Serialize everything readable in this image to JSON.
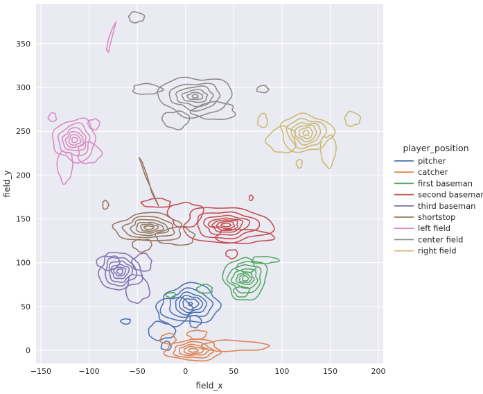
{
  "chart_data": {
    "type": "kde-contour",
    "title": "",
    "xlabel": "field_x",
    "ylabel": "field_y",
    "xlim": [
      -155,
      205
    ],
    "ylim": [
      -15,
      395
    ],
    "xticks": [
      -150,
      -100,
      -50,
      0,
      50,
      100,
      150,
      200
    ],
    "yticks": [
      0,
      50,
      100,
      150,
      200,
      250,
      300,
      350
    ],
    "grid": true,
    "background": "#EAEAF2",
    "legend": {
      "title": "player_position",
      "placement": "right"
    },
    "series": [
      {
        "name": "pitcher",
        "color": "#4C72B0",
        "center": [
          5,
          53
        ],
        "levels": [
          {
            "r": [
              2,
              2
            ],
            "extra": []
          },
          {
            "r": [
              8,
              6
            ]
          },
          {
            "r": [
              12,
              9
            ]
          },
          {
            "r": [
              16,
              12
            ]
          },
          {
            "r": [
              22,
              16
            ]
          },
          {
            "r": [
              30,
              22
            ]
          }
        ],
        "blobs": [
          {
            "cx": -12,
            "cy": 45,
            "rx": 18,
            "ry": 16
          },
          {
            "cx": -25,
            "cy": 22,
            "rx": 14,
            "ry": 10
          },
          {
            "cx": -20,
            "cy": 5,
            "rx": 5,
            "ry": 5
          },
          {
            "cx": -62,
            "cy": 33,
            "rx": 5,
            "ry": 3
          },
          {
            "cx": 10,
            "cy": 33,
            "rx": 6,
            "ry": 7
          }
        ]
      },
      {
        "name": "catcher",
        "color": "#DD8452",
        "center": [
          8,
          0
        ],
        "levels": [
          {
            "r": [
              5,
              2
            ]
          },
          {
            "r": [
              10,
              4
            ]
          },
          {
            "r": [
              15,
              6
            ]
          },
          {
            "r": [
              20,
              9
            ]
          },
          {
            "r": [
              28,
              12
            ]
          }
        ],
        "blobs": [
          {
            "cx": 50,
            "cy": 5,
            "rx": 35,
            "ry": 6
          },
          {
            "cx": -18,
            "cy": 13,
            "rx": 8,
            "ry": 6
          },
          {
            "cx": 12,
            "cy": 18,
            "rx": 10,
            "ry": 5
          }
        ]
      },
      {
        "name": "first baseman",
        "color": "#55A868",
        "center": [
          62,
          82
        ],
        "levels": [
          {
            "r": [
              3,
              3
            ]
          },
          {
            "r": [
              6,
              5
            ]
          },
          {
            "r": [
              9,
              7
            ]
          },
          {
            "r": [
              13,
              11
            ]
          },
          {
            "r": [
              17,
              16
            ]
          },
          {
            "r": [
              22,
              24
            ]
          }
        ],
        "blobs": [
          {
            "cx": 63,
            "cy": 95,
            "rx": 10,
            "ry": 6
          },
          {
            "cx": 58,
            "cy": 67,
            "rx": 8,
            "ry": 6
          },
          {
            "cx": 82,
            "cy": 103,
            "rx": 14,
            "ry": 4
          },
          {
            "cx": 20,
            "cy": 70,
            "rx": 8,
            "ry": 5
          },
          {
            "cx": -15,
            "cy": 63,
            "rx": 5,
            "ry": 3
          }
        ]
      },
      {
        "name": "second baseman",
        "color": "#C44E52",
        "center": [
          42,
          143
        ],
        "levels": [
          {
            "r": [
              5,
              2
            ]
          },
          {
            "r": [
              9,
              4
            ]
          },
          {
            "r": [
              13,
              6
            ]
          },
          {
            "r": [
              17,
              8
            ]
          },
          {
            "r": [
              23,
              11
            ]
          },
          {
            "r": [
              32,
              15
            ]
          },
          {
            "r": [
              46,
              20
            ]
          }
        ],
        "blobs": [
          {
            "cx": 0,
            "cy": 155,
            "rx": 18,
            "ry": 14
          },
          {
            "cx": 60,
            "cy": 130,
            "rx": 30,
            "ry": 8
          },
          {
            "cx": -30,
            "cy": 168,
            "rx": 15,
            "ry": 5
          },
          {
            "cx": 48,
            "cy": 110,
            "rx": 6,
            "ry": 5
          },
          {
            "cx": 68,
            "cy": 174,
            "rx": 2,
            "ry": 3
          }
        ]
      },
      {
        "name": "third baseman",
        "color": "#8172B3",
        "center": [
          -68,
          90
        ],
        "levels": [
          {
            "r": [
              3,
              3
            ]
          },
          {
            "r": [
              6,
              5
            ]
          },
          {
            "r": [
              9,
              8
            ]
          },
          {
            "r": [
              12,
              12
            ]
          },
          {
            "r": [
              16,
              16
            ]
          },
          {
            "r": [
              22,
              21
            ]
          }
        ],
        "blobs": [
          {
            "cx": -50,
            "cy": 70,
            "rx": 12,
            "ry": 16
          },
          {
            "cx": -45,
            "cy": 100,
            "rx": 10,
            "ry": 10
          },
          {
            "cx": -80,
            "cy": 100,
            "rx": 12,
            "ry": 8
          }
        ]
      },
      {
        "name": "shortstop",
        "color": "#937860",
        "center": [
          -38,
          140
        ],
        "levels": [
          {
            "r": [
              5,
              2
            ]
          },
          {
            "r": [
              9,
              4
            ]
          },
          {
            "r": [
              14,
              6
            ]
          },
          {
            "r": [
              19,
              9
            ]
          },
          {
            "r": [
              26,
              12
            ]
          },
          {
            "r": [
              35,
              16
            ]
          }
        ],
        "blobs": [
          {
            "cx": -10,
            "cy": 130,
            "rx": 20,
            "ry": 10
          },
          {
            "cx": -45,
            "cy": 120,
            "rx": 10,
            "ry": 7
          },
          {
            "cx": -83,
            "cy": 166,
            "rx": 3,
            "ry": 5
          }
        ],
        "streaks": [
          [
            [
              -45,
              215
            ],
            [
              -40,
              200
            ],
            [
              -35,
              180
            ],
            [
              -28,
              165
            ],
            [
              -34,
              180
            ],
            [
              -42,
              200
            ],
            [
              -48,
              220
            ],
            [
              -45,
              215
            ]
          ]
        ]
      },
      {
        "name": "left field",
        "color": "#DA8BC3",
        "center": [
          -115,
          240
        ],
        "levels": [
          {
            "r": [
              3,
              3
            ]
          },
          {
            "r": [
              6,
              6
            ]
          },
          {
            "r": [
              9,
              9
            ]
          },
          {
            "r": [
              12,
              13
            ]
          },
          {
            "r": [
              16,
              18
            ]
          },
          {
            "r": [
              22,
              24
            ]
          }
        ],
        "blobs": [
          {
            "cx": -125,
            "cy": 210,
            "rx": 8,
            "ry": 18
          },
          {
            "cx": -100,
            "cy": 225,
            "rx": 12,
            "ry": 12
          },
          {
            "cx": -138,
            "cy": 266,
            "rx": 4,
            "ry": 5
          },
          {
            "cx": -95,
            "cy": 258,
            "rx": 6,
            "ry": 6
          }
        ],
        "streaks": [
          [
            [
              -82,
              343
            ],
            [
              -80,
              355
            ],
            [
              -76,
              367
            ],
            [
              -72,
              375
            ],
            [
              -75,
              362
            ],
            [
              -78,
              350
            ],
            [
              -80,
              340
            ],
            [
              -82,
              343
            ]
          ]
        ]
      },
      {
        "name": "center field",
        "color": "#8C8C8C",
        "center": [
          10,
          290
        ],
        "levels": [
          {
            "r": [
              3,
              2
            ]
          },
          {
            "r": [
              8,
              4
            ]
          },
          {
            "r": [
              13,
              7
            ]
          },
          {
            "r": [
              19,
              11
            ]
          },
          {
            "r": [
              26,
              15
            ]
          },
          {
            "r": [
              38,
              22
            ]
          }
        ],
        "blobs": [
          {
            "cx": -40,
            "cy": 298,
            "rx": 15,
            "ry": 6
          },
          {
            "cx": 30,
            "cy": 273,
            "rx": 22,
            "ry": 10
          },
          {
            "cx": -10,
            "cy": 263,
            "rx": 14,
            "ry": 10
          },
          {
            "cx": -51,
            "cy": 380,
            "rx": 8,
            "ry": 6
          },
          {
            "cx": 80,
            "cy": 298,
            "rx": 6,
            "ry": 4
          }
        ]
      },
      {
        "name": "right field",
        "color": "#CCB974",
        "center": [
          125,
          248
        ],
        "levels": [
          {
            "r": [
              3,
              3
            ]
          },
          {
            "r": [
              7,
              6
            ]
          },
          {
            "r": [
              11,
              9
            ]
          },
          {
            "r": [
              15,
              12
            ]
          },
          {
            "r": [
              20,
              16
            ]
          },
          {
            "r": [
              27,
              21
            ]
          }
        ],
        "blobs": [
          {
            "cx": 100,
            "cy": 240,
            "rx": 15,
            "ry": 15
          },
          {
            "cx": 148,
            "cy": 228,
            "rx": 8,
            "ry": 18
          },
          {
            "cx": 173,
            "cy": 264,
            "rx": 8,
            "ry": 8
          },
          {
            "cx": 80,
            "cy": 262,
            "rx": 5,
            "ry": 8
          },
          {
            "cx": 118,
            "cy": 213,
            "rx": 3,
            "ry": 5
          }
        ]
      }
    ]
  }
}
